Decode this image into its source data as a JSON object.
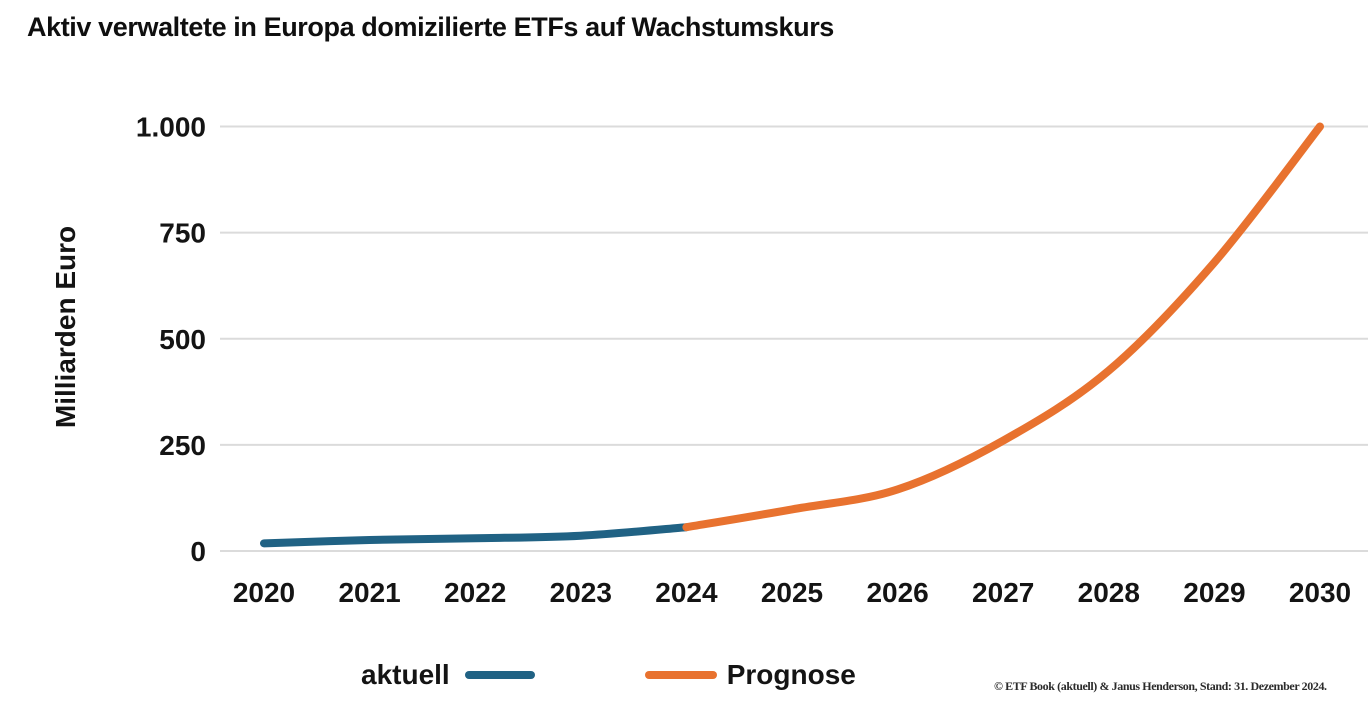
{
  "title": "Aktiv verwaltete in Europa domizilierte ETFs auf Wachstumskurs",
  "y_axis_title": "Milliarden Euro",
  "footer": {
    "attribution": "© ETF Book (aktuell) & Janus Henderson, Stand: 31. Dezember 2024."
  },
  "colors": {
    "aktuell": "#206284",
    "prognose": "#E8722F",
    "gridline": "#DBDBDB",
    "text": "#141414"
  },
  "chart_data": {
    "type": "line",
    "title": "Aktiv verwaltete in Europa domizilierte ETFs auf Wachstumskurs",
    "xlabel": "",
    "ylabel": "Milliarden Euro",
    "categories": [
      2020,
      2021,
      2022,
      2023,
      2024,
      2025,
      2026,
      2027,
      2028,
      2029,
      2030
    ],
    "x_tick_labels": [
      "2020",
      "2021",
      "2022",
      "2023",
      "2024",
      "2025",
      "2026",
      "2027",
      "2028",
      "2029",
      "2030"
    ],
    "ylim": [
      0,
      1000
    ],
    "y_ticks": [
      {
        "value": 0,
        "label": "0"
      },
      {
        "value": 250,
        "label": "250"
      },
      {
        "value": 500,
        "label": "500"
      },
      {
        "value": 750,
        "label": "750"
      },
      {
        "value": 1000,
        "label": "1.000"
      }
    ],
    "grid": "horizontal",
    "legend_position": "bottom",
    "series": [
      {
        "name": "aktuell",
        "color": "#206284",
        "x": [
          2020,
          2021,
          2022,
          2023,
          2024
        ],
        "values": [
          18,
          26,
          30,
          36,
          56
        ]
      },
      {
        "name": "Prognose",
        "color": "#E8722F",
        "x": [
          2024,
          2025,
          2026,
          2027,
          2028,
          2029,
          2030
        ],
        "values": [
          56,
          98,
          145,
          260,
          425,
          680,
          1000
        ]
      }
    ]
  }
}
